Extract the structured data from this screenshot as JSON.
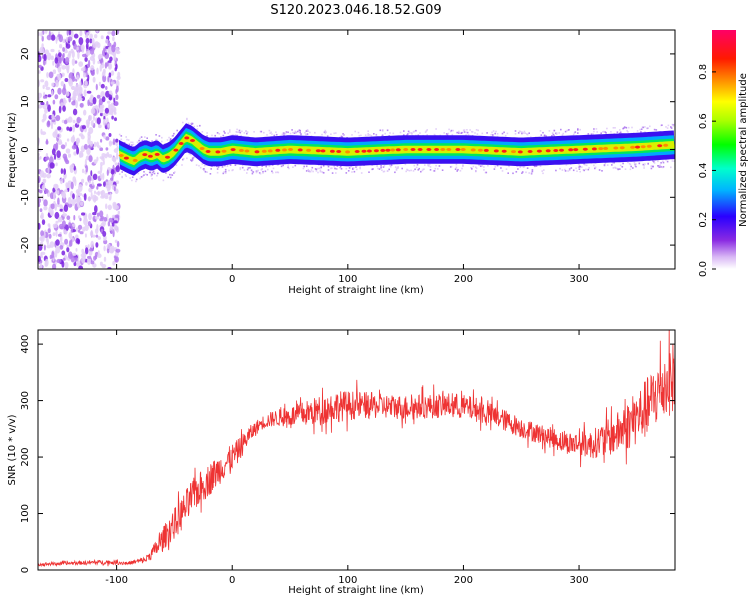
{
  "title": "S120.2023.046.18.52.G09",
  "chart_data": [
    {
      "type": "heatmap",
      "xlabel": "Height of straight line (km)",
      "ylabel": "Frequency (Hz)",
      "xlim": [
        -168,
        383
      ],
      "ylim": [
        -25,
        25
      ],
      "x_ticks": [
        "-100",
        "0",
        "100",
        "200",
        "300"
      ],
      "x_tick_values": [
        -100,
        0,
        100,
        200,
        300
      ],
      "y_ticks": [
        "20",
        "10",
        "0",
        "-10",
        "-20"
      ],
      "y_tick_values": [
        20,
        10,
        0,
        -10,
        -20
      ],
      "colorbar": {
        "label": "Normalized spectral amplitude",
        "ticks": [
          "0.0",
          "0.2",
          "0.4",
          "0.6",
          "0.8"
        ],
        "tick_values": [
          0,
          0.2,
          0.4,
          0.6,
          0.8
        ],
        "range": [
          0,
          0.97
        ]
      },
      "noise_region_x": [
        -168,
        -98
      ],
      "ridge": {
        "x": [
          -98,
          -90,
          -85,
          -80,
          -75,
          -70,
          -65,
          -60,
          -55,
          -50,
          -45,
          -40,
          -35,
          -30,
          -25,
          -20,
          -10,
          0,
          20,
          50,
          100,
          150,
          200,
          250,
          300,
          350,
          383
        ],
        "freq": [
          -1,
          -2,
          -2.5,
          -1.5,
          -1,
          -1.5,
          -1,
          -2,
          -1.5,
          -0.5,
          1,
          2.5,
          2,
          1,
          0,
          -0.5,
          -0.5,
          0,
          -0.5,
          0,
          -0.5,
          0,
          0,
          -0.5,
          0,
          0.5,
          1
        ]
      }
    },
    {
      "type": "line",
      "xlabel": "Height of straight line (km)",
      "ylabel": "SNR (10 * v/v)",
      "xlim": [
        -168,
        383
      ],
      "ylim": [
        0,
        425
      ],
      "x_ticks": [
        "-100",
        "0",
        "100",
        "200",
        "300"
      ],
      "x_tick_values": [
        -100,
        0,
        100,
        200,
        300
      ],
      "y_ticks": [
        "400",
        "300",
        "200",
        "100",
        "0"
      ],
      "y_tick_values": [
        400,
        300,
        200,
        100,
        0
      ],
      "line_color": "#ee3333",
      "x": [
        -168,
        -140,
        -110,
        -90,
        -75,
        -65,
        -55,
        -45,
        -35,
        -25,
        -15,
        -5,
        5,
        15,
        25,
        35,
        50,
        70,
        90,
        110,
        130,
        150,
        170,
        190,
        210,
        230,
        250,
        270,
        290,
        310,
        330,
        345,
        360,
        370,
        383
      ],
      "y": [
        10,
        12,
        14,
        12,
        18,
        40,
        70,
        95,
        130,
        150,
        170,
        190,
        210,
        240,
        260,
        268,
        272,
        280,
        290,
        292,
        290,
        288,
        290,
        292,
        285,
        270,
        252,
        238,
        225,
        222,
        238,
        260,
        290,
        320,
        345
      ],
      "noise_amplitude": [
        3,
        3,
        4,
        3,
        6,
        15,
        25,
        30,
        30,
        30,
        28,
        25,
        22,
        15,
        12,
        14,
        18,
        25,
        28,
        25,
        22,
        22,
        22,
        22,
        22,
        20,
        18,
        18,
        20,
        25,
        35,
        45,
        55,
        60,
        65
      ]
    }
  ]
}
